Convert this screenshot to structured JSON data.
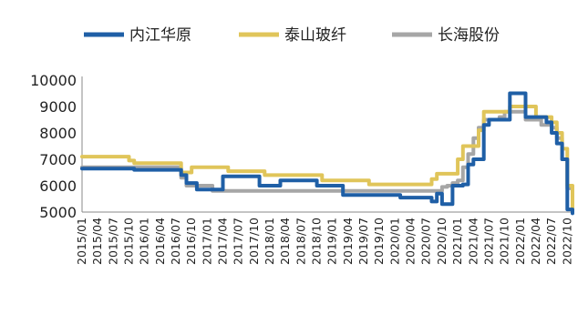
{
  "chart_data": {
    "type": "line",
    "title": "",
    "xlabel": "",
    "ylabel": "",
    "ylim": [
      5000,
      10000
    ],
    "yticks": [
      5000,
      6000,
      7000,
      8000,
      9000,
      10000
    ],
    "legend_position": "top",
    "grid": false,
    "x_tick_labels": [
      "2015/01",
      "2015/04",
      "2015/07",
      "2015/10",
      "2016/01",
      "2016/04",
      "2016/07",
      "2016/10",
      "2017/01",
      "2017/04",
      "2017/07",
      "2017/10",
      "2018/01",
      "2018/04",
      "2018/07",
      "2018/10",
      "2019/01",
      "2019/04",
      "2019/07",
      "2019/10",
      "2020/01",
      "2020/04",
      "2020/07",
      "2020/10",
      "2021/01",
      "2021/04",
      "2021/07",
      "2021/10",
      "2022/01",
      "2022/04",
      "2022/07",
      "2022/10"
    ],
    "series": [
      {
        "name": "内江华原",
        "color": "#1f5fa6",
        "points": [
          [
            "2015/01",
            6650
          ],
          [
            "2015/10",
            6650
          ],
          [
            "2015/11",
            6600
          ],
          [
            "2016/07",
            6600
          ],
          [
            "2016/08",
            6400
          ],
          [
            "2016/09",
            6100
          ],
          [
            "2016/11",
            5850
          ],
          [
            "2017/03",
            5850
          ],
          [
            "2017/04",
            6350
          ],
          [
            "2017/10",
            6350
          ],
          [
            "2017/11",
            6000
          ],
          [
            "2018/02",
            6000
          ],
          [
            "2018/03",
            6200
          ],
          [
            "2018/09",
            6200
          ],
          [
            "2018/10",
            6000
          ],
          [
            "2019/02",
            6000
          ],
          [
            "2019/03",
            5650
          ],
          [
            "2020/01",
            5650
          ],
          [
            "2020/02",
            5550
          ],
          [
            "2020/07",
            5550
          ],
          [
            "2020/08",
            5400
          ],
          [
            "2020/09",
            5700
          ],
          [
            "2020/10",
            5300
          ],
          [
            "2020/11",
            5300
          ],
          [
            "2020/12",
            6000
          ],
          [
            "2021/02",
            6050
          ],
          [
            "2021/03",
            6800
          ],
          [
            "2021/04",
            7000
          ],
          [
            "2021/05",
            7000
          ],
          [
            "2021/06",
            8300
          ],
          [
            "2021/07",
            8500
          ],
          [
            "2021/10",
            8500
          ],
          [
            "2021/11",
            9500
          ],
          [
            "2022/01",
            9500
          ],
          [
            "2022/02",
            8600
          ],
          [
            "2022/05",
            8600
          ],
          [
            "2022/06",
            8400
          ],
          [
            "2022/07",
            8000
          ],
          [
            "2022/08",
            7600
          ],
          [
            "2022/09",
            7000
          ],
          [
            "2022/10",
            5100
          ],
          [
            "2022/11",
            4950
          ]
        ]
      },
      {
        "name": "泰山玻纤",
        "color": "#e0c55a",
        "points": [
          [
            "2015/01",
            7100
          ],
          [
            "2015/09",
            7100
          ],
          [
            "2015/10",
            6950
          ],
          [
            "2015/11",
            6850
          ],
          [
            "2016/06",
            6850
          ],
          [
            "2016/07",
            6850
          ],
          [
            "2016/08",
            6500
          ],
          [
            "2016/10",
            6700
          ],
          [
            "2017/04",
            6700
          ],
          [
            "2017/05",
            6550
          ],
          [
            "2017/11",
            6550
          ],
          [
            "2017/12",
            6400
          ],
          [
            "2018/10",
            6400
          ],
          [
            "2018/11",
            6200
          ],
          [
            "2019/07",
            6200
          ],
          [
            "2019/08",
            6050
          ],
          [
            "2020/07",
            6050
          ],
          [
            "2020/08",
            6250
          ],
          [
            "2020/09",
            6450
          ],
          [
            "2020/12",
            6450
          ],
          [
            "2021/01",
            7000
          ],
          [
            "2021/02",
            7500
          ],
          [
            "2021/04",
            7500
          ],
          [
            "2021/05",
            8100
          ],
          [
            "2021/06",
            8800
          ],
          [
            "2021/10",
            8800
          ],
          [
            "2021/11",
            9000
          ],
          [
            "2022/01",
            9000
          ],
          [
            "2022/03",
            9000
          ],
          [
            "2022/04",
            8600
          ],
          [
            "2022/06",
            8600
          ],
          [
            "2022/07",
            8400
          ],
          [
            "2022/08",
            8000
          ],
          [
            "2022/09",
            7400
          ],
          [
            "2022/10",
            6000
          ],
          [
            "2022/11",
            5000
          ]
        ]
      },
      {
        "name": "长海股份",
        "color": "#a6a6a6",
        "points": [
          [
            "2015/01",
            6700
          ],
          [
            "2015/10",
            6700
          ],
          [
            "2016/07",
            6700
          ],
          [
            "2016/08",
            6300
          ],
          [
            "2016/09",
            6000
          ],
          [
            "2017/01",
            6000
          ],
          [
            "2017/02",
            5800
          ],
          [
            "2018/06",
            5800
          ],
          [
            "2018/07",
            5800
          ],
          [
            "2019/09",
            5800
          ],
          [
            "2019/10",
            5800
          ],
          [
            "2020/09",
            5800
          ],
          [
            "2020/10",
            5950
          ],
          [
            "2020/11",
            6000
          ],
          [
            "2020/12",
            6100
          ],
          [
            "2021/01",
            6200
          ],
          [
            "2021/02",
            6700
          ],
          [
            "2021/03",
            7200
          ],
          [
            "2021/04",
            7800
          ],
          [
            "2021/05",
            8200
          ],
          [
            "2021/06",
            8500
          ],
          [
            "2021/09",
            8600
          ],
          [
            "2021/10",
            8800
          ],
          [
            "2022/01",
            8800
          ],
          [
            "2022/02",
            8500
          ],
          [
            "2022/04",
            8500
          ],
          [
            "2022/05",
            8300
          ],
          [
            "2022/06",
            8300
          ],
          [
            "2022/07",
            8200
          ],
          [
            "2022/08",
            7800
          ],
          [
            "2022/09",
            7000
          ],
          [
            "2022/10",
            5900
          ],
          [
            "2022/11",
            5100
          ]
        ]
      }
    ]
  }
}
